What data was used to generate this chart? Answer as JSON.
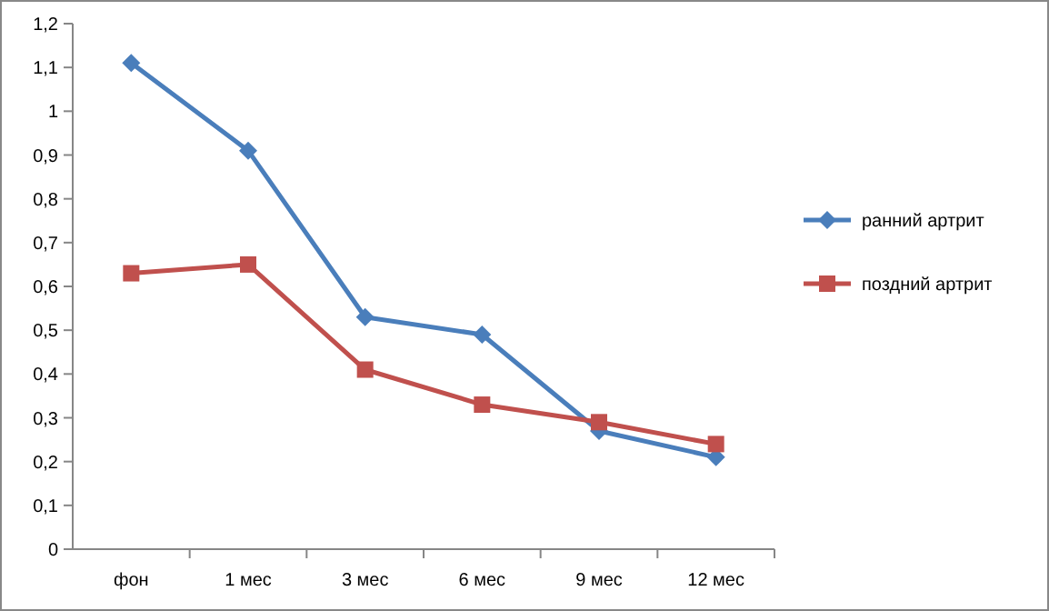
{
  "chart_data": {
    "type": "line",
    "categories": [
      "фон",
      "1 мес",
      "3 мес",
      "6 мес",
      "9 мес",
      "12 мес"
    ],
    "series": [
      {
        "name": "ранний артрит",
        "color": "#4a7ebb",
        "marker": "diamond",
        "values": [
          1.11,
          0.91,
          0.53,
          0.49,
          0.27,
          0.21
        ]
      },
      {
        "name": "поздний артрит",
        "color": "#c0504d",
        "marker": "square",
        "values": [
          0.63,
          0.65,
          0.41,
          0.33,
          0.29,
          0.24
        ]
      }
    ],
    "ylim": [
      0,
      1.2
    ],
    "yticks": [
      0,
      {
        "value": 0.1,
        "label": "0,1"
      },
      {
        "value": 0.2,
        "label": "0,2"
      },
      {
        "value": 0.3,
        "label": "0,3"
      },
      {
        "value": 0.4,
        "label": "0,4"
      },
      {
        "value": 0.5,
        "label": "0,5"
      },
      {
        "value": 0.6,
        "label": "0,6"
      },
      {
        "value": 0.7,
        "label": "0,7"
      },
      {
        "value": 0.8,
        "label": "0,8"
      },
      {
        "value": 0.9,
        "label": "0,9"
      },
      1,
      {
        "value": 1.1,
        "label": "1,1"
      },
      {
        "value": 1.2,
        "label": "1,2"
      }
    ],
    "grid": false,
    "legend": "right"
  }
}
